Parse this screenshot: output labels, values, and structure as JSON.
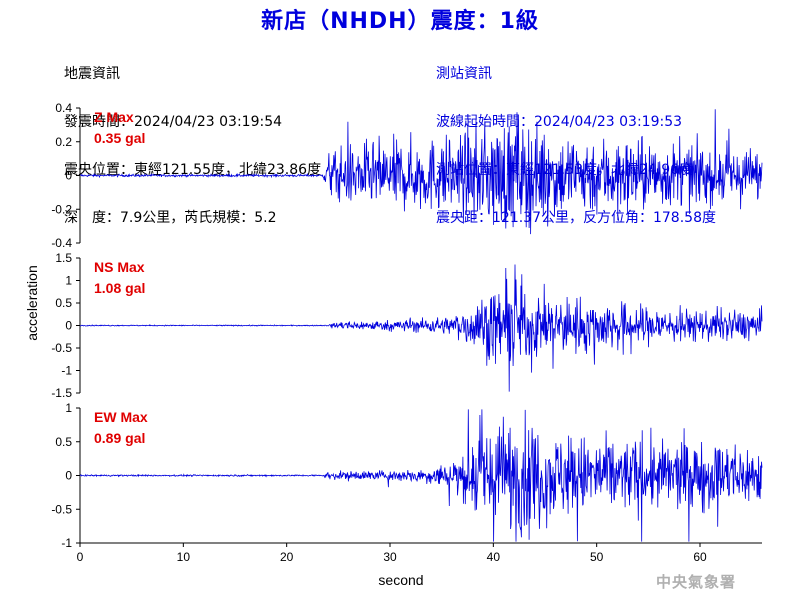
{
  "title": "新店（NHDH）震度：1級",
  "quake_info": {
    "heading": "地震資訊",
    "time": "發震時間：2024/04/23 03:19:54",
    "epicenter": "震央位置：東經121.55度，北緯23.86度",
    "depth_mag": "深　度：7.9公里，芮氏規模：5.2"
  },
  "station_info": {
    "heading": "測站資訊",
    "wave_time": "波線起始時間：2024/04/23 03:19:53",
    "location": "測站位置：東經121.53度，北緯24.96度",
    "distance": "震央距：121.37公里，反方位角：178.58度"
  },
  "credit": "中央氣象署",
  "chart_data": [
    {
      "type": "line",
      "component": "Z",
      "max_label": "Z Max",
      "max_value": "0.35 gal",
      "ylim": [
        -0.4,
        0.4
      ],
      "yticks": [
        -0.4,
        -0.2,
        0,
        0.2,
        0.4
      ],
      "ytick_labels": [
        "-0.4",
        "-0.2",
        "0",
        "0.2",
        "0.4"
      ],
      "xlim": [
        0,
        66
      ],
      "onset_s": 23.5,
      "envelope": [
        [
          0,
          0.006
        ],
        [
          23.5,
          0.006
        ],
        [
          24,
          0.12
        ],
        [
          26,
          0.16
        ],
        [
          30,
          0.18
        ],
        [
          36,
          0.2
        ],
        [
          40,
          0.28
        ],
        [
          42,
          0.3
        ],
        [
          46,
          0.22
        ],
        [
          52,
          0.2
        ],
        [
          58,
          0.16
        ],
        [
          66,
          0.14
        ]
      ],
      "color": "#0000dd"
    },
    {
      "type": "line",
      "component": "NS",
      "max_label": "NS Max",
      "max_value": "1.08 gal",
      "ylim": [
        -1.5,
        1.5
      ],
      "yticks": [
        -1.5,
        -1,
        -0.5,
        0,
        0.5,
        1,
        1.5
      ],
      "ytick_labels": [
        "-1.5",
        "-1",
        "-0.5",
        "0",
        "0.5",
        "1",
        "1.5"
      ],
      "xlim": [
        0,
        66
      ],
      "onset_s": 24,
      "envelope": [
        [
          0,
          0.01
        ],
        [
          24,
          0.01
        ],
        [
          25,
          0.08
        ],
        [
          30,
          0.1
        ],
        [
          36,
          0.18
        ],
        [
          38,
          0.45
        ],
        [
          40,
          0.7
        ],
        [
          42,
          0.95
        ],
        [
          44,
          0.6
        ],
        [
          48,
          0.55
        ],
        [
          54,
          0.4
        ],
        [
          60,
          0.3
        ],
        [
          66,
          0.3
        ]
      ],
      "color": "#0000dd"
    },
    {
      "type": "line",
      "component": "EW",
      "max_label": "EW Max",
      "max_value": "0.89 gal",
      "ylim": [
        -1,
        1
      ],
      "yticks": [
        -1,
        -0.5,
        0,
        0.5,
        1
      ],
      "ytick_labels": [
        "-1",
        "-0.5",
        "0",
        "0.5",
        "1"
      ],
      "xlim": [
        0,
        66
      ],
      "onset_s": 23.5,
      "envelope": [
        [
          0,
          0.01
        ],
        [
          23.5,
          0.01
        ],
        [
          24,
          0.05
        ],
        [
          30,
          0.07
        ],
        [
          34,
          0.1
        ],
        [
          37,
          0.3
        ],
        [
          39,
          0.7
        ],
        [
          42,
          0.8
        ],
        [
          46,
          0.55
        ],
        [
          50,
          0.5
        ],
        [
          56,
          0.45
        ],
        [
          60,
          0.45
        ],
        [
          66,
          0.4
        ]
      ],
      "color": "#0000dd"
    }
  ],
  "xaxis": {
    "label": "second",
    "ticks": [
      0,
      10,
      20,
      30,
      40,
      50,
      60
    ],
    "tick_labels": [
      "0",
      "10",
      "20",
      "30",
      "40",
      "50",
      "60"
    ]
  },
  "ylabel": "acceleration"
}
